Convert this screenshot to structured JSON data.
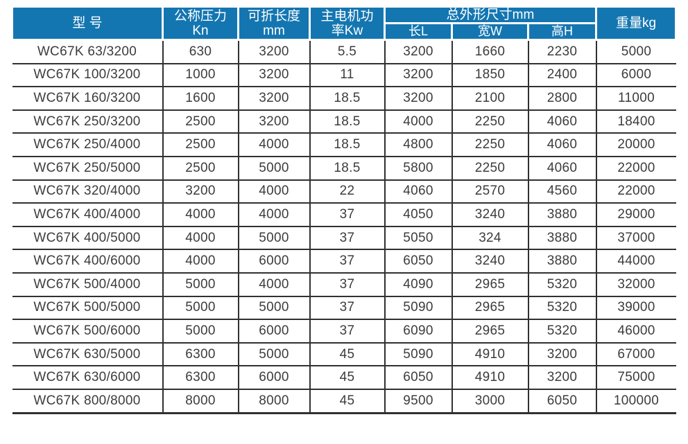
{
  "colors": {
    "header_bg": "#1476b1",
    "header_text": "#ffffff",
    "body_text": "#3c3c3c",
    "grid_line": "#303030"
  },
  "table": {
    "headers": {
      "model": "型 号",
      "pressure": [
        "公称压力",
        "Kn"
      ],
      "length": [
        "可折长度",
        "mm"
      ],
      "motor": [
        "主电机功",
        "率Kw"
      ],
      "dimensions_group": "总外形尺寸mm",
      "dim_l": "长L",
      "dim_w": "宽W",
      "dim_h": "高H",
      "weight": "重量kg"
    },
    "rows": [
      [
        "WC67K 63/3200",
        "630",
        "3200",
        "5.5",
        "3200",
        "1660",
        "2230",
        "5000"
      ],
      [
        "WC67K 100/3200",
        "1000",
        "3200",
        "11",
        "3200",
        "1850",
        "2400",
        "6000"
      ],
      [
        "WC67K 160/3200",
        "1600",
        "3200",
        "18.5",
        "3200",
        "2100",
        "2800",
        "11000"
      ],
      [
        "WC67K 250/3200",
        "2500",
        "3200",
        "18.5",
        "4000",
        "2250",
        "4060",
        "18400"
      ],
      [
        "WC67K 250/4000",
        "2500",
        "4000",
        "18.5",
        "4800",
        "2250",
        "4060",
        "20000"
      ],
      [
        "WC67K 250/5000",
        "2500",
        "5000",
        "18.5",
        "5800",
        "2250",
        "4060",
        "22000"
      ],
      [
        "WC67K 320/4000",
        "3200",
        "4000",
        "22",
        "4060",
        "2570",
        "4560",
        "22000"
      ],
      [
        "WC67K 400/4000",
        "4000",
        "4000",
        "37",
        "4050",
        "3240",
        "3880",
        "29000"
      ],
      [
        "WC67K 400/5000",
        "4000",
        "5000",
        "37",
        "5050",
        "324",
        "3880",
        "37000"
      ],
      [
        "WC67K 400/6000",
        "4000",
        "6000",
        "37",
        "6050",
        "3240",
        "3880",
        "44000"
      ],
      [
        "WC67K 500/4000",
        "5000",
        "4000",
        "37",
        "4090",
        "2965",
        "5320",
        "32000"
      ],
      [
        "WC67K 500/5000",
        "5000",
        "5000",
        "37",
        "5090",
        "2965",
        "5320",
        "39000"
      ],
      [
        "WC67K 500/6000",
        "5000",
        "6000",
        "37",
        "6090",
        "2965",
        "5320",
        "46000"
      ],
      [
        "WC67K 630/5000",
        "6300",
        "5000",
        "45",
        "5090",
        "4910",
        "3200",
        "67000"
      ],
      [
        "WC67K 630/6000",
        "6300",
        "6000",
        "45",
        "6050",
        "4910",
        "3200",
        "75000"
      ],
      [
        "WC67K 800/8000",
        "8000",
        "8000",
        "45",
        "9500",
        "3000",
        "6050",
        "100000"
      ]
    ]
  }
}
